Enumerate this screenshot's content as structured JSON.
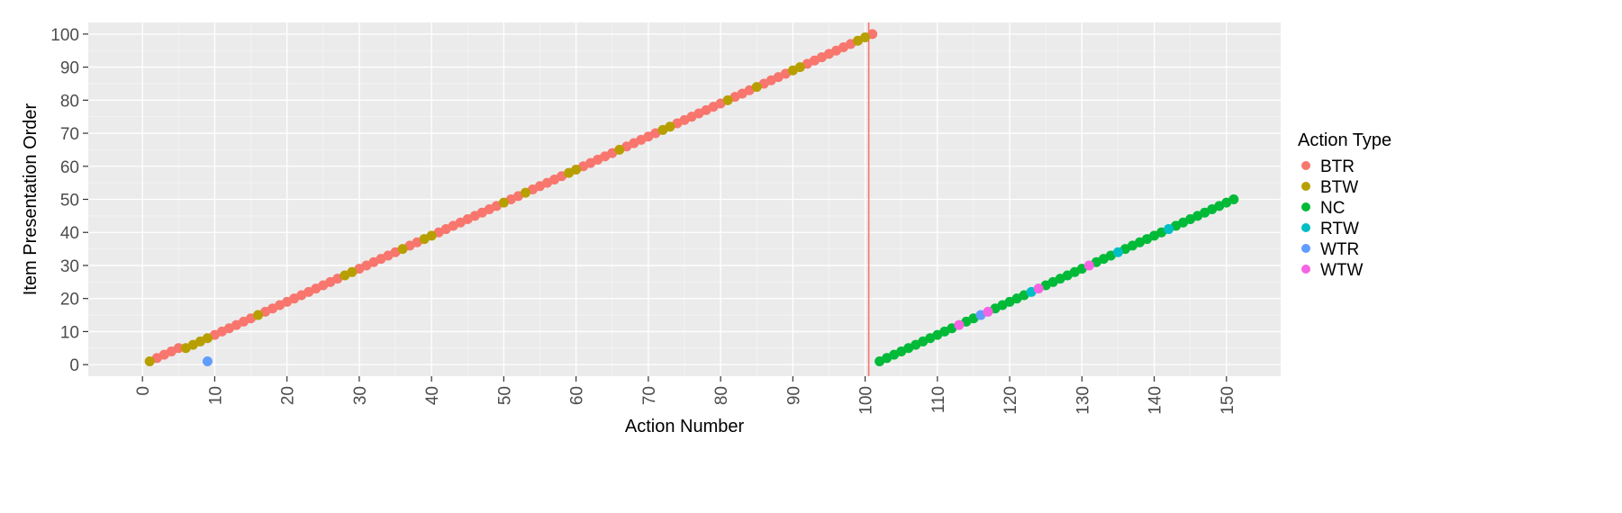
{
  "chart_data": {
    "type": "scatter",
    "title": "",
    "xlabel": "Action Number",
    "ylabel": "Item Presentation Order",
    "xlim": [
      -7.5,
      157.5
    ],
    "ylim": [
      -3.5,
      103.5
    ],
    "xticks": [
      0,
      10,
      20,
      30,
      40,
      50,
      60,
      70,
      80,
      90,
      100,
      110,
      120,
      130,
      140,
      150
    ],
    "yticks": [
      0,
      10,
      20,
      30,
      40,
      50,
      60,
      70,
      80,
      90,
      100
    ],
    "vline": {
      "x": 100.5,
      "color": "#F8766D"
    },
    "legend": {
      "title": "Action Type",
      "position": "right",
      "items": [
        {
          "name": "BTR",
          "color": "#F8766D"
        },
        {
          "name": "BTW",
          "color": "#B79F00"
        },
        {
          "name": "NC",
          "color": "#00BA38"
        },
        {
          "name": "RTW",
          "color": "#00BFC4"
        },
        {
          "name": "WTR",
          "color": "#619CFF"
        },
        {
          "name": "WTW",
          "color": "#F564E3"
        }
      ]
    },
    "series": [
      {
        "name": "BTR",
        "points": [
          [
            2,
            2
          ],
          [
            3,
            3
          ],
          [
            4,
            4
          ],
          [
            5,
            5
          ],
          [
            10,
            9
          ],
          [
            11,
            10
          ],
          [
            12,
            11
          ],
          [
            13,
            12
          ],
          [
            14,
            13
          ],
          [
            15,
            14
          ],
          [
            17,
            16
          ],
          [
            18,
            17
          ],
          [
            19,
            18
          ],
          [
            20,
            19
          ],
          [
            21,
            20
          ],
          [
            22,
            21
          ],
          [
            23,
            22
          ],
          [
            24,
            23
          ],
          [
            25,
            24
          ],
          [
            26,
            25
          ],
          [
            27,
            26
          ],
          [
            30,
            29
          ],
          [
            31,
            30
          ],
          [
            32,
            31
          ],
          [
            33,
            32
          ],
          [
            34,
            33
          ],
          [
            35,
            34
          ],
          [
            37,
            36
          ],
          [
            38,
            37
          ],
          [
            41,
            40
          ],
          [
            42,
            41
          ],
          [
            43,
            42
          ],
          [
            44,
            43
          ],
          [
            45,
            44
          ],
          [
            46,
            45
          ],
          [
            47,
            46
          ],
          [
            48,
            47
          ],
          [
            49,
            48
          ],
          [
            51,
            50
          ],
          [
            52,
            51
          ],
          [
            54,
            53
          ],
          [
            55,
            54
          ],
          [
            56,
            55
          ],
          [
            57,
            56
          ],
          [
            58,
            57
          ],
          [
            61,
            60
          ],
          [
            62,
            61
          ],
          [
            63,
            62
          ],
          [
            64,
            63
          ],
          [
            65,
            64
          ],
          [
            67,
            66
          ],
          [
            68,
            67
          ],
          [
            69,
            68
          ],
          [
            70,
            69
          ],
          [
            71,
            70
          ],
          [
            74,
            73
          ],
          [
            75,
            74
          ],
          [
            76,
            75
          ],
          [
            77,
            76
          ],
          [
            78,
            77
          ],
          [
            79,
            78
          ],
          [
            80,
            79
          ],
          [
            82,
            81
          ],
          [
            83,
            82
          ],
          [
            84,
            83
          ],
          [
            86,
            85
          ],
          [
            87,
            86
          ],
          [
            88,
            87
          ],
          [
            89,
            88
          ],
          [
            92,
            91
          ],
          [
            93,
            92
          ],
          [
            94,
            93
          ],
          [
            95,
            94
          ],
          [
            96,
            95
          ],
          [
            97,
            96
          ],
          [
            98,
            97
          ],
          [
            101,
            100
          ]
        ]
      },
      {
        "name": "BTW",
        "points": [
          [
            1,
            1
          ],
          [
            6,
            5
          ],
          [
            7,
            6
          ],
          [
            8,
            7
          ],
          [
            9,
            8
          ],
          [
            16,
            15
          ],
          [
            28,
            27
          ],
          [
            29,
            28
          ],
          [
            36,
            35
          ],
          [
            39,
            38
          ],
          [
            40,
            39
          ],
          [
            50,
            49
          ],
          [
            53,
            52
          ],
          [
            59,
            58
          ],
          [
            60,
            59
          ],
          [
            66,
            65
          ],
          [
            72,
            71
          ],
          [
            73,
            72
          ],
          [
            81,
            80
          ],
          [
            85,
            84
          ],
          [
            90,
            89
          ],
          [
            91,
            90
          ],
          [
            99,
            98
          ],
          [
            100,
            99
          ]
        ]
      },
      {
        "name": "NC",
        "points": [
          [
            102,
            1
          ],
          [
            103,
            2
          ],
          [
            104,
            3
          ],
          [
            105,
            4
          ],
          [
            106,
            5
          ],
          [
            107,
            6
          ],
          [
            108,
            7
          ],
          [
            109,
            8
          ],
          [
            110,
            9
          ],
          [
            111,
            10
          ],
          [
            112,
            11
          ],
          [
            114,
            13
          ],
          [
            115,
            14
          ],
          [
            118,
            17
          ],
          [
            119,
            18
          ],
          [
            120,
            19
          ],
          [
            121,
            20
          ],
          [
            122,
            21
          ],
          [
            125,
            24
          ],
          [
            126,
            25
          ],
          [
            127,
            26
          ],
          [
            128,
            27
          ],
          [
            129,
            28
          ],
          [
            130,
            29
          ],
          [
            132,
            31
          ],
          [
            133,
            32
          ],
          [
            134,
            33
          ],
          [
            136,
            35
          ],
          [
            137,
            36
          ],
          [
            138,
            37
          ],
          [
            139,
            38
          ],
          [
            140,
            39
          ],
          [
            141,
            40
          ],
          [
            143,
            42
          ],
          [
            144,
            43
          ],
          [
            145,
            44
          ],
          [
            146,
            45
          ],
          [
            147,
            46
          ],
          [
            148,
            47
          ],
          [
            149,
            48
          ],
          [
            150,
            49
          ],
          [
            151,
            50
          ]
        ]
      },
      {
        "name": "RTW",
        "points": [
          [
            123,
            22
          ],
          [
            135,
            34
          ],
          [
            142,
            41
          ]
        ]
      },
      {
        "name": "WTR",
        "points": [
          [
            9,
            1
          ],
          [
            116,
            15
          ]
        ]
      },
      {
        "name": "WTW",
        "points": [
          [
            113,
            12
          ],
          [
            117,
            16
          ],
          [
            124,
            23
          ],
          [
            131,
            30
          ]
        ]
      }
    ]
  }
}
